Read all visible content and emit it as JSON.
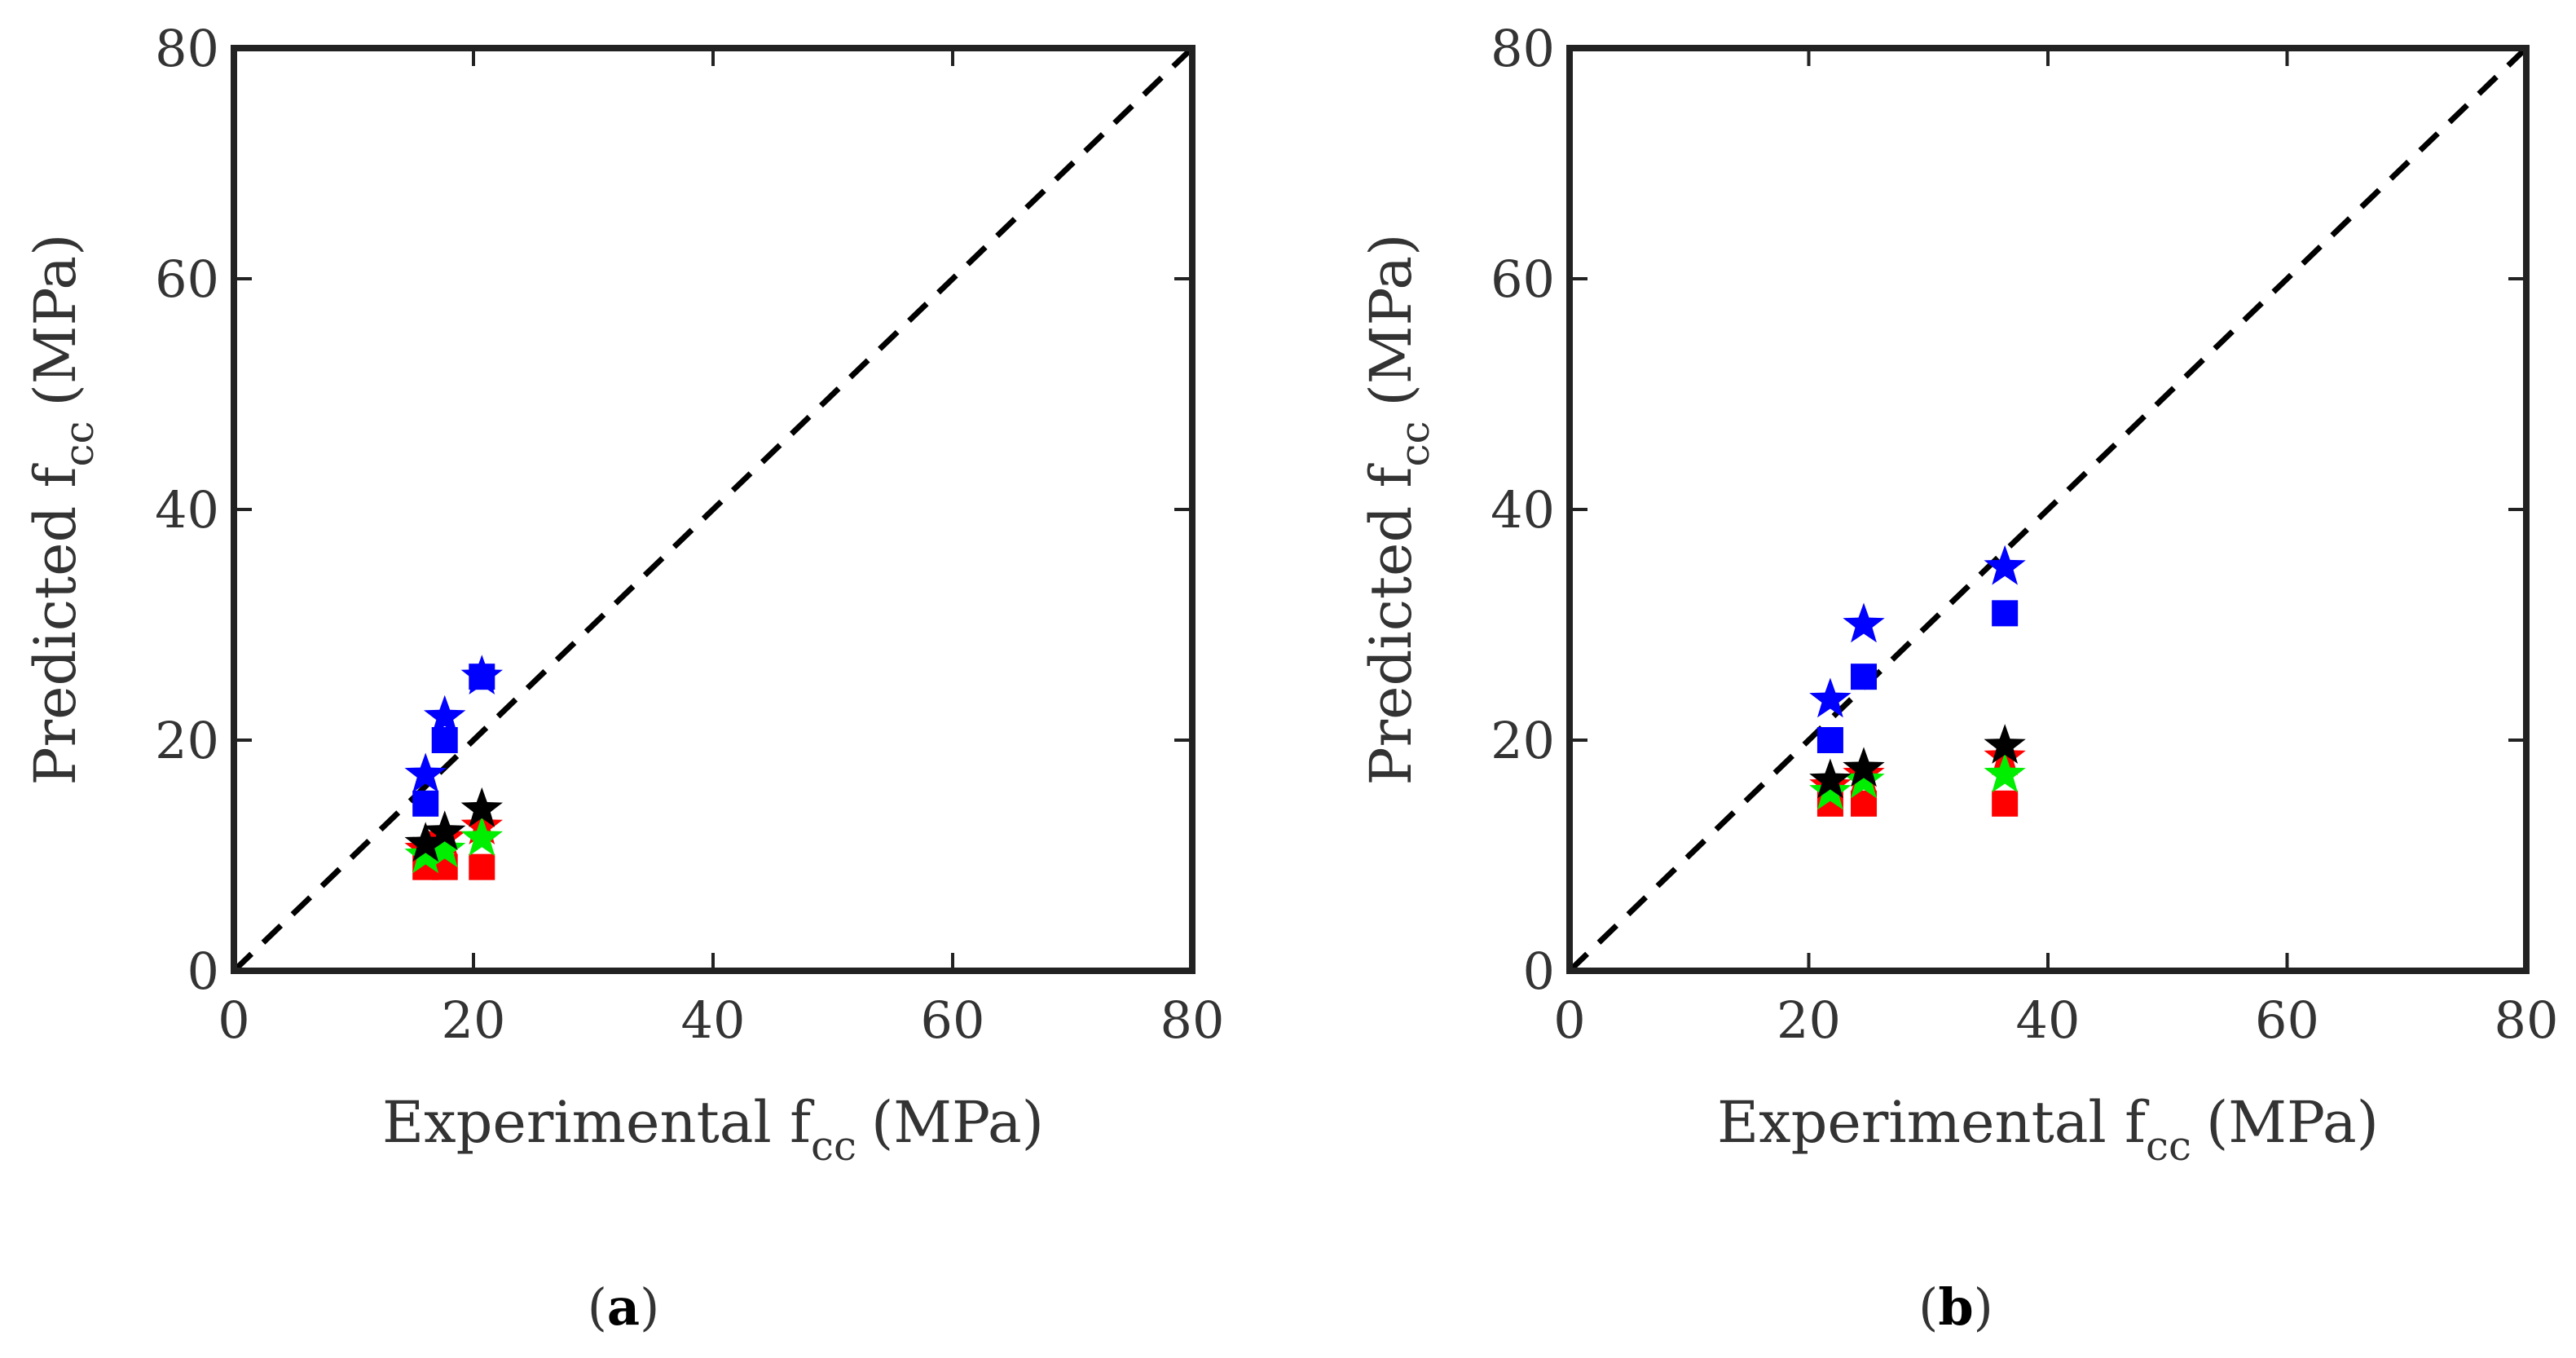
{
  "chart_data": [
    {
      "type": "scatter",
      "panel_label": "a",
      "xlabel": {
        "main": "Experimental f",
        "sub": "cc",
        "unit": "(MPa)"
      },
      "ylabel": {
        "main": "Predicted f",
        "sub": "cc",
        "unit": "(MPa)"
      },
      "xlim": [
        0,
        80
      ],
      "ylim": [
        0,
        80
      ],
      "xticks": [
        "0",
        "20",
        "40",
        "60",
        "80"
      ],
      "yticks": [
        "0",
        "20",
        "40",
        "60",
        "80"
      ],
      "reference_line": {
        "style": "dashed",
        "from": [
          0,
          0
        ],
        "to": [
          80,
          80
        ]
      },
      "series": [
        {
          "marker": "square",
          "color": "#0000ff",
          "points": [
            [
              16,
              14.5
            ],
            [
              17.6,
              20
            ],
            [
              20.7,
              25.5
            ]
          ]
        },
        {
          "marker": "star",
          "color": "#0000ff",
          "points": [
            [
              16,
              17
            ],
            [
              17.6,
              22
            ],
            [
              20.7,
              25.5
            ]
          ]
        },
        {
          "marker": "square",
          "color": "#ff0000",
          "points": [
            [
              16,
              9
            ],
            [
              17.6,
              9
            ],
            [
              20.7,
              9
            ]
          ]
        },
        {
          "marker": "star",
          "color": "#ff0000",
          "points": [
            [
              16,
              10.5
            ],
            [
              17.6,
              11.5
            ],
            [
              20.7,
              12.5
            ]
          ]
        },
        {
          "marker": "star",
          "color": "#00ee00",
          "points": [
            [
              16,
              10
            ],
            [
              17.6,
              10.5
            ],
            [
              20.7,
              11.5
            ]
          ]
        },
        {
          "marker": "star",
          "color": "#000000",
          "points": [
            [
              16,
              11
            ],
            [
              17.6,
              12
            ],
            [
              20.7,
              14
            ]
          ]
        }
      ]
    },
    {
      "type": "scatter",
      "panel_label": "b",
      "xlabel": {
        "main": "Experimental f",
        "sub": "cc",
        "unit": "(MPa)"
      },
      "ylabel": {
        "main": "Predicted f",
        "sub": "cc",
        "unit": "(MPa)"
      },
      "xlim": [
        0,
        80
      ],
      "ylim": [
        0,
        80
      ],
      "xticks": [
        "0",
        "20",
        "40",
        "60",
        "80"
      ],
      "yticks": [
        "0",
        "20",
        "40",
        "60",
        "80"
      ],
      "reference_line": {
        "style": "dashed",
        "from": [
          0,
          0
        ],
        "to": [
          80,
          80
        ]
      },
      "series": [
        {
          "marker": "square",
          "color": "#0000ff",
          "points": [
            [
              21.8,
              20
            ],
            [
              24.6,
              25.5
            ],
            [
              36.4,
              31
            ]
          ]
        },
        {
          "marker": "star",
          "color": "#0000ff",
          "points": [
            [
              21.8,
              23.5
            ],
            [
              24.6,
              30
            ],
            [
              36.4,
              35
            ]
          ]
        },
        {
          "marker": "square",
          "color": "#ff0000",
          "points": [
            [
              21.8,
              14.5
            ],
            [
              24.6,
              14.5
            ],
            [
              36.4,
              14.5
            ]
          ]
        },
        {
          "marker": "star",
          "color": "#ff0000",
          "points": [
            [
              21.8,
              16
            ],
            [
              24.6,
              17
            ],
            [
              36.4,
              18.5
            ]
          ]
        },
        {
          "marker": "star",
          "color": "#00ee00",
          "points": [
            [
              21.8,
              15.5
            ],
            [
              24.6,
              16.5
            ],
            [
              36.4,
              17
            ]
          ]
        },
        {
          "marker": "star",
          "color": "#000000",
          "points": [
            [
              21.8,
              16.5
            ],
            [
              24.6,
              17.5
            ],
            [
              36.4,
              19.5
            ]
          ]
        }
      ]
    }
  ]
}
